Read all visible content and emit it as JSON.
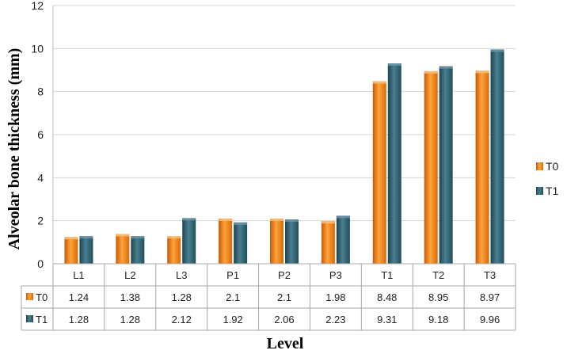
{
  "chart_data": {
    "type": "bar",
    "title": "",
    "xlabel": "Level",
    "ylabel": "Alveolar bone thickness (mm)",
    "ylim": [
      0,
      12
    ],
    "yticks": [
      0,
      2,
      4,
      6,
      8,
      10,
      12
    ],
    "grid": true,
    "legend_position": "right",
    "categories": [
      "L1",
      "L2",
      "L3",
      "P1",
      "P2",
      "P3",
      "T1",
      "T2",
      "T3"
    ],
    "series": [
      {
        "name": "T0",
        "color": "#f07d12",
        "values": [
          1.24,
          1.38,
          1.28,
          2.1,
          2.1,
          1.98,
          8.48,
          8.95,
          8.97
        ],
        "labels": [
          "1.24",
          "1.38",
          "1.28",
          "2.1",
          "2.1",
          "1.98",
          "8.48",
          "8.95",
          "8.97"
        ]
      },
      {
        "name": "T1",
        "color": "#2c5a6a",
        "values": [
          1.28,
          1.28,
          2.12,
          1.92,
          2.06,
          2.23,
          9.31,
          9.18,
          9.96
        ],
        "labels": [
          "1.28",
          "1.28",
          "2.12",
          "1.92",
          "2.06",
          "2.23",
          "9.31",
          "9.18",
          "9.96"
        ]
      }
    ]
  }
}
